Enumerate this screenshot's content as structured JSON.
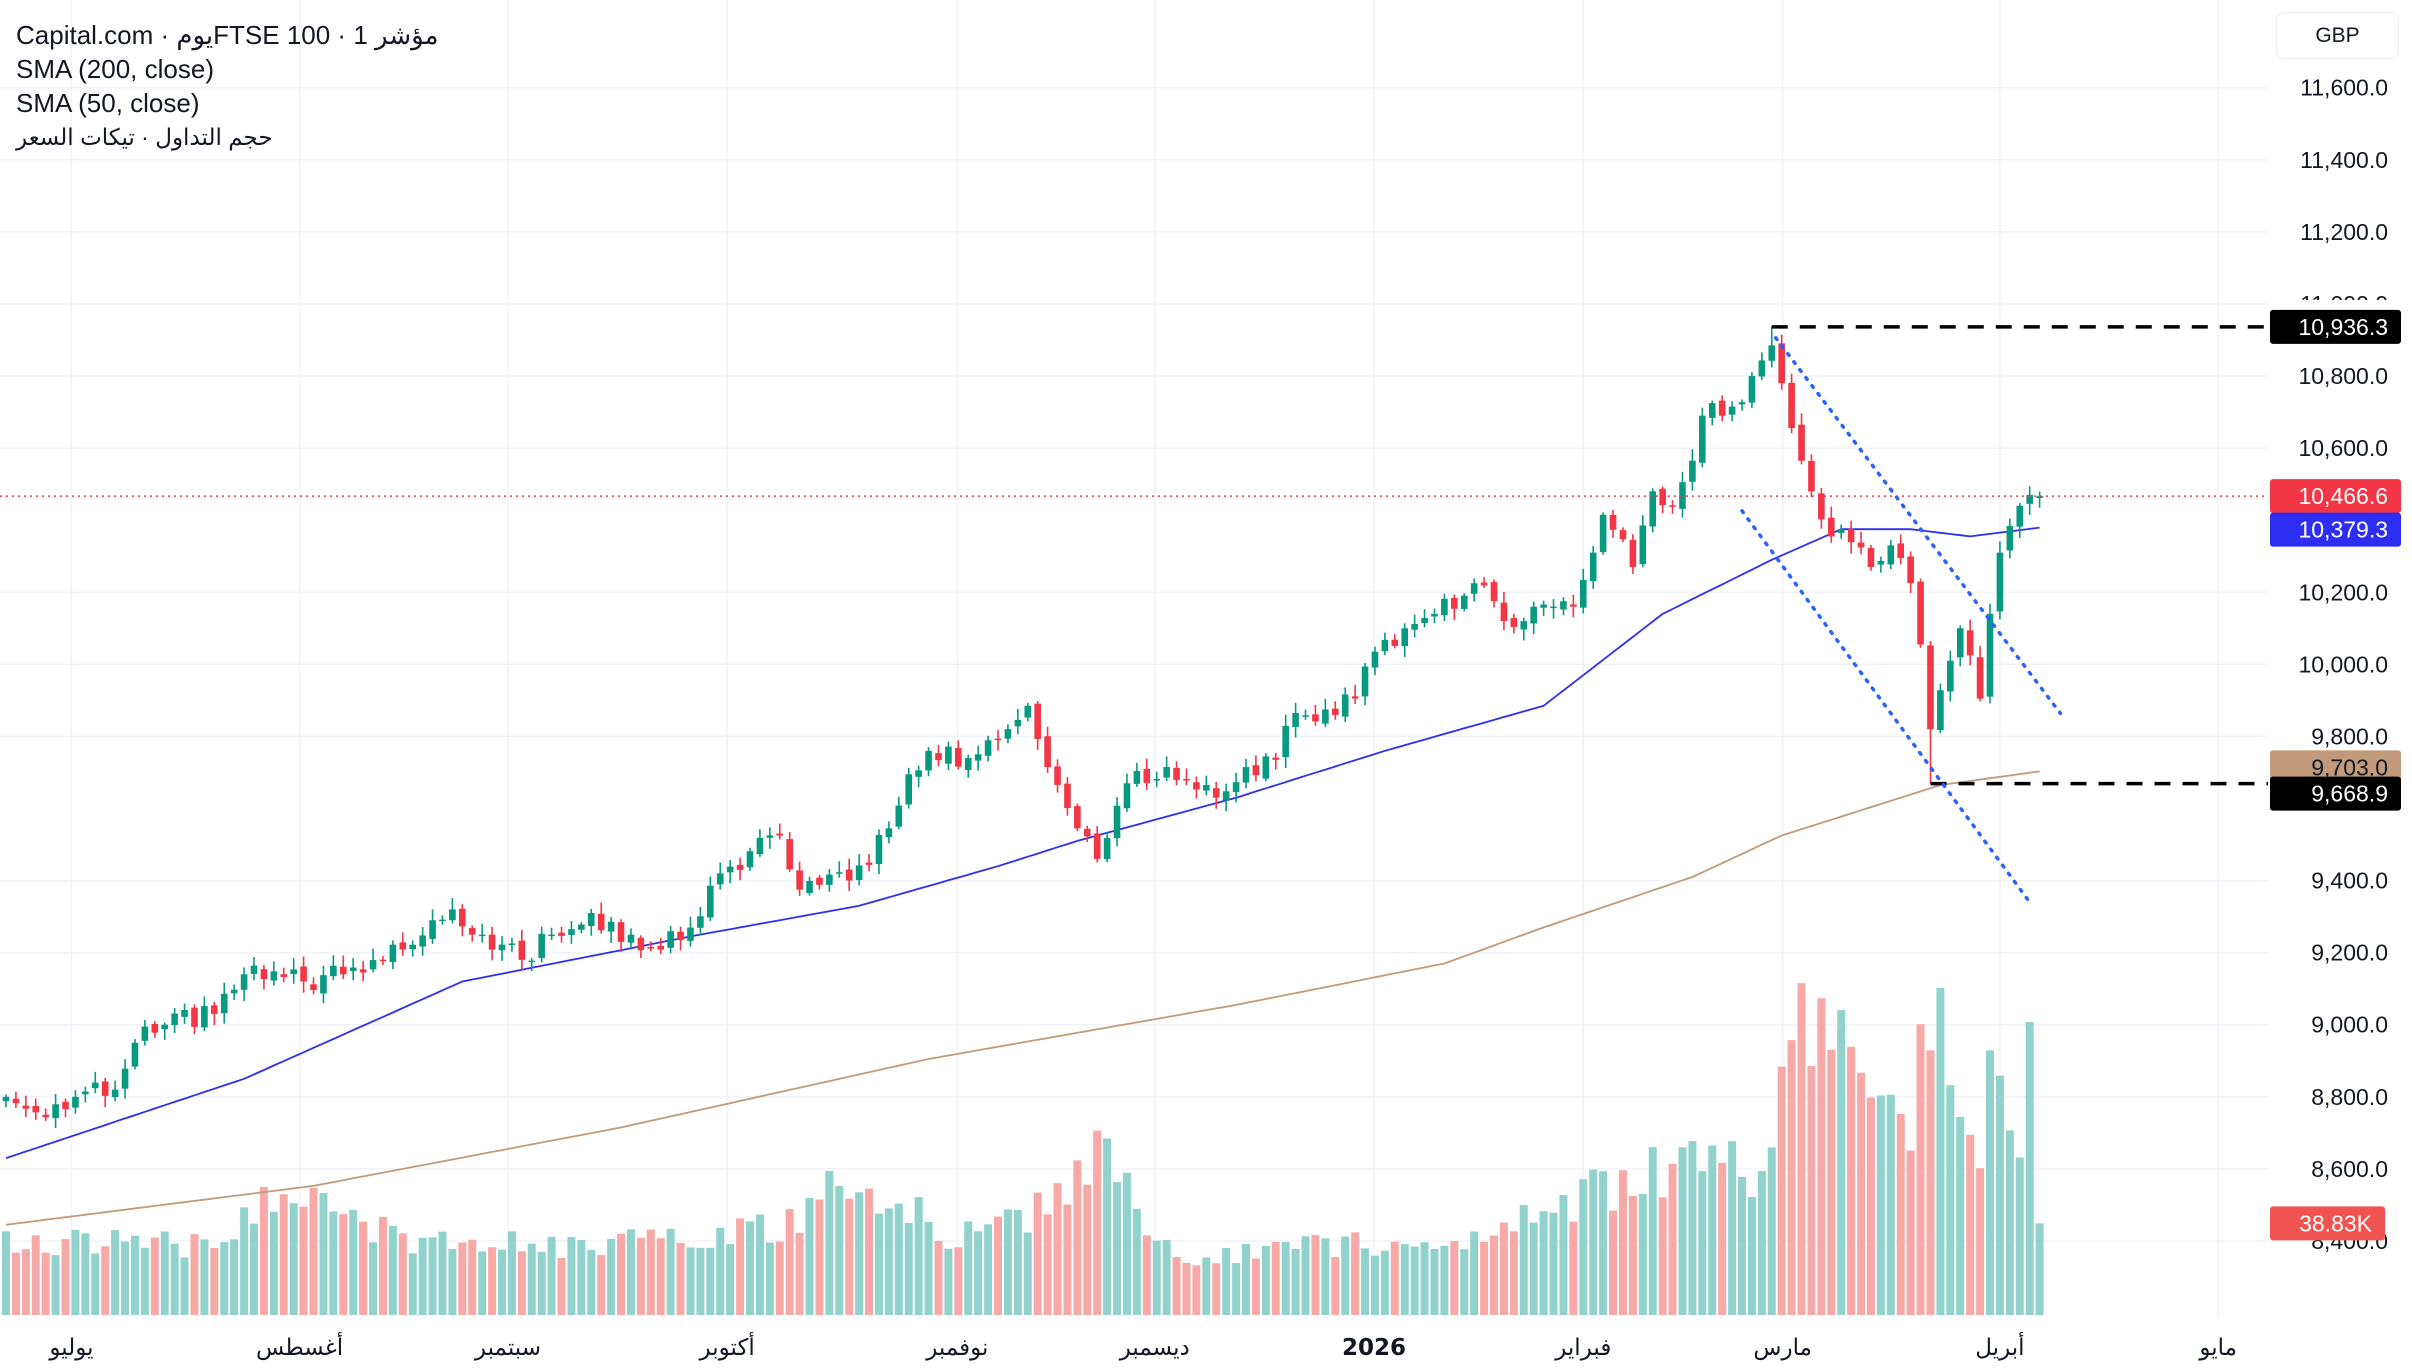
{
  "legend": {
    "title": "Capital.com · يومFTSE 100 · 1 مؤشر",
    "sma200": "SMA (200, close)",
    "sma50": "SMA (50, close)",
    "volume": "حجم التداول · تيكات السعر"
  },
  "currency_button": "GBP",
  "colors": {
    "up": "#089981",
    "down": "#f23645",
    "up_volume": "#92d2cc",
    "down_volume": "#f7a9a7",
    "sma50": "#2e2ef2",
    "sma200": "#c09a7a",
    "channel": "#2962ff",
    "grid": "#f0f3fa"
  },
  "chart_data": {
    "type": "candlestick",
    "title": "FTSE 100 · 1D · Capital.com",
    "ylabel": "GBP",
    "ylim": [
      8400,
      11600
    ],
    "y_ticks": [
      "11,600.0",
      "11,400.0",
      "11,200.0",
      "11,000.0",
      "10,800.0",
      "10,600.0",
      "10,200.0",
      "10,000.0",
      "9,800.0",
      "9,400.0",
      "9,200.0",
      "9,000.0",
      "8,800.0",
      "8,600.0",
      "8,400.0"
    ],
    "y_tick_values": [
      11600,
      11400,
      11200,
      11000,
      10800,
      10600,
      10200,
      10000,
      9800,
      9400,
      9200,
      9000,
      8800,
      8600,
      8400
    ],
    "bar_count": 206,
    "x_ticks": [
      {
        "label": "يوليو",
        "bar": 6.6,
        "bold": false
      },
      {
        "label": "أغسطس",
        "bar": 29.6,
        "bold": false
      },
      {
        "label": "سبتمبر",
        "bar": 50.6,
        "bold": false
      },
      {
        "label": "أكتوبر",
        "bar": 72.7,
        "bold": false
      },
      {
        "label": "نوفمبر",
        "bar": 95.9,
        "bold": false
      },
      {
        "label": "ديسمبر",
        "bar": 115.8,
        "bold": false
      },
      {
        "label": "2026",
        "bar": 137.9,
        "bold": true
      },
      {
        "label": "فبراير",
        "bar": 159,
        "bold": false
      },
      {
        "label": "مارس",
        "bar": 179.1,
        "bold": false
      },
      {
        "label": "أبريل",
        "bar": 201,
        "bold": false
      },
      {
        "label": "مايو",
        "bar": 223,
        "bold": false
      }
    ],
    "close_keypoints": [
      [
        0,
        8800
      ],
      [
        3,
        8757
      ],
      [
        7,
        8800
      ],
      [
        11,
        8820
      ],
      [
        13,
        8950
      ],
      [
        16,
        9000
      ],
      [
        21,
        9030
      ],
      [
        24,
        9140
      ],
      [
        30,
        9120
      ],
      [
        34,
        9140
      ],
      [
        38,
        9180
      ],
      [
        43,
        9290
      ],
      [
        45,
        9320
      ],
      [
        48,
        9250
      ],
      [
        52,
        9180
      ],
      [
        55,
        9250
      ],
      [
        59,
        9310
      ],
      [
        62,
        9230
      ],
      [
        68,
        9235
      ],
      [
        72,
        9420
      ],
      [
        78,
        9525
      ],
      [
        80,
        9375
      ],
      [
        85,
        9400
      ],
      [
        89,
        9545
      ],
      [
        91,
        9695
      ],
      [
        93,
        9760
      ],
      [
        97,
        9740
      ],
      [
        101,
        9820
      ],
      [
        103,
        9885
      ],
      [
        105,
        9715
      ],
      [
        108,
        9545
      ],
      [
        110,
        9460
      ],
      [
        113,
        9670
      ],
      [
        117,
        9715
      ],
      [
        122,
        9630
      ],
      [
        125,
        9715
      ],
      [
        128,
        9735
      ],
      [
        130,
        9865
      ],
      [
        133,
        9875
      ],
      [
        136,
        9905
      ],
      [
        138,
        10035
      ],
      [
        141,
        10100
      ],
      [
        144,
        10140
      ],
      [
        148,
        10225
      ],
      [
        151,
        10120
      ],
      [
        154,
        10160
      ],
      [
        158,
        10160
      ],
      [
        160,
        10310
      ],
      [
        161,
        10415
      ],
      [
        164,
        10270
      ],
      [
        166,
        10480
      ],
      [
        168,
        10440
      ],
      [
        170,
        10565
      ],
      [
        171,
        10690
      ],
      [
        174,
        10715
      ],
      [
        176,
        10800
      ],
      [
        178,
        10885
      ],
      [
        179,
        10780
      ],
      [
        181,
        10565
      ],
      [
        182,
        10480
      ],
      [
        184,
        10355
      ],
      [
        185,
        10375
      ],
      [
        188,
        10270
      ],
      [
        190,
        10330
      ],
      [
        192,
        10225
      ],
      [
        193,
        10055
      ],
      [
        194,
        9820
      ],
      [
        196,
        10010
      ],
      [
        197,
        10100
      ],
      [
        199,
        9905
      ],
      [
        200,
        10140
      ],
      [
        201,
        10310
      ],
      [
        203,
        10440
      ],
      [
        204,
        10470
      ],
      [
        205,
        10466.6
      ]
    ],
    "sma50_keypoints": [
      [
        0,
        8630
      ],
      [
        24,
        8850
      ],
      [
        46,
        9120
      ],
      [
        69,
        9245
      ],
      [
        86,
        9330
      ],
      [
        100,
        9440
      ],
      [
        108,
        9510
      ],
      [
        124,
        9630
      ],
      [
        139,
        9760
      ],
      [
        155,
        9885
      ],
      [
        167,
        10140
      ],
      [
        178,
        10290
      ],
      [
        185,
        10375
      ],
      [
        192,
        10375
      ],
      [
        198,
        10355
      ],
      [
        205,
        10379.3
      ]
    ],
    "sma200_keypoints": [
      [
        0,
        8445
      ],
      [
        31,
        8553
      ],
      [
        62,
        8715
      ],
      [
        93,
        8905
      ],
      [
        124,
        9055
      ],
      [
        145,
        9170
      ],
      [
        155,
        9270
      ],
      [
        170,
        9410
      ],
      [
        179,
        9525
      ],
      [
        195,
        9665
      ],
      [
        205,
        9703.0
      ]
    ],
    "volume_keypoints_k": [
      [
        0,
        32
      ],
      [
        20,
        30
      ],
      [
        30,
        57
      ],
      [
        40,
        30
      ],
      [
        60,
        30
      ],
      [
        80,
        38
      ],
      [
        85,
        61
      ],
      [
        95,
        34
      ],
      [
        105,
        45
      ],
      [
        110,
        72
      ],
      [
        118,
        22
      ],
      [
        130,
        28
      ],
      [
        140,
        30
      ],
      [
        150,
        34
      ],
      [
        158,
        48
      ],
      [
        165,
        60
      ],
      [
        172,
        65
      ],
      [
        176,
        58
      ],
      [
        178,
        75
      ],
      [
        180,
        115
      ],
      [
        184,
        131
      ],
      [
        188,
        95
      ],
      [
        192,
        70
      ],
      [
        194,
        138
      ],
      [
        196,
        100
      ],
      [
        199,
        75
      ],
      [
        201,
        115
      ],
      [
        203,
        60
      ],
      [
        204,
        108
      ],
      [
        205,
        38.83
      ]
    ],
    "swing_high": {
      "bar": 178,
      "value": 10936.3,
      "label": "10,936.3"
    },
    "swing_low": {
      "bar": 194,
      "value": 9668.9,
      "label": "9,668.9"
    },
    "last_price": {
      "value": 10466.6,
      "label": "10,466.6"
    },
    "sma50_last": {
      "value": 10379.3,
      "label": "10,379.3"
    },
    "sma200_last": {
      "value": 9703.0,
      "label": "9,703.0"
    },
    "last_volume": {
      "value_k": 38.83,
      "label": "38.83K"
    },
    "channel": {
      "upper": [
        [
          178.4,
          10906
        ],
        [
          207.1,
          9864
        ]
      ],
      "lower": [
        [
          175,
          10426
        ],
        [
          204,
          9340
        ]
      ]
    }
  }
}
